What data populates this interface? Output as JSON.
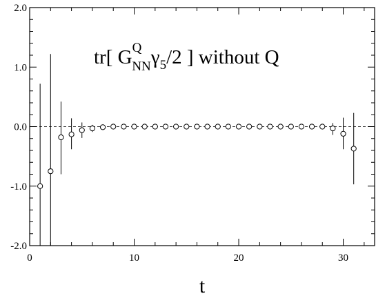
{
  "chart_data": {
    "type": "scatter",
    "title": "",
    "xlabel": "t",
    "ylabel": "",
    "xlim": [
      0,
      33
    ],
    "ylim": [
      -2.0,
      2.0
    ],
    "x_ticks": [
      0,
      10,
      20,
      30
    ],
    "x_tick_labels": [
      "0",
      "10",
      "20",
      "30"
    ],
    "y_ticks": [
      2.0,
      1.0,
      0.0,
      -1.0,
      -2.0
    ],
    "y_tick_labels": [
      "2.0",
      "1.0",
      "0.0",
      "-1.0",
      "-2.0"
    ],
    "x_minor_step": 2,
    "y_minor_step": 0.2,
    "grid": false,
    "reference_line": {
      "y": 0.0,
      "style": "dashed"
    },
    "annotation": {
      "text_prefix": "tr[ G",
      "sup": "Q",
      "sub": "NN",
      "gamma": "γ",
      "gamma_sub": "5",
      "text_suffix": "/2 ] without Q"
    },
    "series": [
      {
        "marker": "open-circle",
        "points": [
          {
            "x": 1,
            "y": -1.0,
            "lo": -2.0,
            "hi": 0.72
          },
          {
            "x": 2,
            "y": -0.75,
            "lo": -2.0,
            "hi": 1.22
          },
          {
            "x": 3,
            "y": -0.18,
            "lo": -0.8,
            "hi": 0.42
          },
          {
            "x": 4,
            "y": -0.13,
            "lo": -0.38,
            "hi": 0.14
          },
          {
            "x": 5,
            "y": -0.06,
            "lo": -0.19,
            "hi": 0.07
          },
          {
            "x": 6,
            "y": -0.03,
            "lo": -0.09,
            "hi": 0.03
          },
          {
            "x": 7,
            "y": -0.01,
            "lo": -0.04,
            "hi": 0.02
          },
          {
            "x": 8,
            "y": 0.0,
            "lo": -0.02,
            "hi": 0.02
          },
          {
            "x": 9,
            "y": 0.0,
            "lo": -0.01,
            "hi": 0.01
          },
          {
            "x": 10,
            "y": 0.0,
            "lo": -0.01,
            "hi": 0.01
          },
          {
            "x": 11,
            "y": 0.0,
            "lo": -0.01,
            "hi": 0.01
          },
          {
            "x": 12,
            "y": 0.0,
            "lo": -0.01,
            "hi": 0.01
          },
          {
            "x": 13,
            "y": 0.0,
            "lo": -0.01,
            "hi": 0.01
          },
          {
            "x": 14,
            "y": 0.0,
            "lo": -0.01,
            "hi": 0.01
          },
          {
            "x": 15,
            "y": 0.0,
            "lo": -0.01,
            "hi": 0.01
          },
          {
            "x": 16,
            "y": 0.0,
            "lo": -0.01,
            "hi": 0.01
          },
          {
            "x": 17,
            "y": 0.0,
            "lo": -0.01,
            "hi": 0.01
          },
          {
            "x": 18,
            "y": 0.0,
            "lo": -0.01,
            "hi": 0.01
          },
          {
            "x": 19,
            "y": 0.0,
            "lo": -0.01,
            "hi": 0.01
          },
          {
            "x": 20,
            "y": 0.0,
            "lo": -0.01,
            "hi": 0.01
          },
          {
            "x": 21,
            "y": 0.0,
            "lo": -0.01,
            "hi": 0.01
          },
          {
            "x": 22,
            "y": 0.0,
            "lo": -0.01,
            "hi": 0.01
          },
          {
            "x": 23,
            "y": 0.0,
            "lo": -0.01,
            "hi": 0.01
          },
          {
            "x": 24,
            "y": 0.0,
            "lo": -0.01,
            "hi": 0.01
          },
          {
            "x": 25,
            "y": 0.0,
            "lo": -0.01,
            "hi": 0.01
          },
          {
            "x": 26,
            "y": 0.0,
            "lo": -0.01,
            "hi": 0.01
          },
          {
            "x": 27,
            "y": 0.0,
            "lo": -0.02,
            "hi": 0.02
          },
          {
            "x": 28,
            "y": 0.0,
            "lo": -0.04,
            "hi": 0.04
          },
          {
            "x": 29,
            "y": -0.03,
            "lo": -0.14,
            "hi": 0.06
          },
          {
            "x": 30,
            "y": -0.12,
            "lo": -0.38,
            "hi": 0.15
          },
          {
            "x": 31,
            "y": -0.37,
            "lo": -0.97,
            "hi": 0.23
          }
        ]
      }
    ]
  }
}
